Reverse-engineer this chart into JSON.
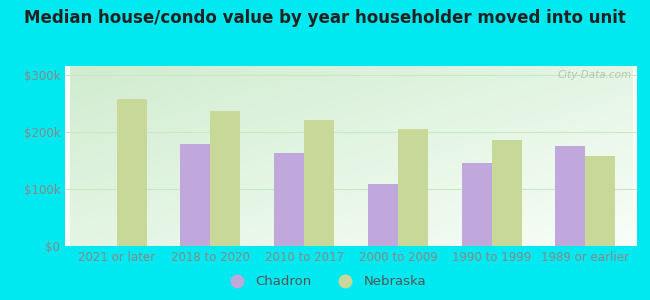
{
  "title": "Median house/condo value by year householder moved into unit",
  "categories": [
    "2021 or later",
    "2018 to 2020",
    "2010 to 2017",
    "2000 to 2009",
    "1990 to 1999",
    "1989 or earlier"
  ],
  "chadron": [
    null,
    178000,
    163000,
    109000,
    146000,
    175000
  ],
  "nebraska": [
    258000,
    236000,
    220000,
    205000,
    185000,
    158000
  ],
  "chadron_color": "#c0a8dc",
  "nebraska_color": "#c8d898",
  "background_outer": "#00e8f0",
  "grid_color": "#c8e8c0",
  "yticks": [
    0,
    100000,
    200000,
    300000
  ],
  "ylim": [
    0,
    315000
  ],
  "bar_width": 0.32,
  "legend_chadron": "Chadron",
  "legend_nebraska": "Nebraska",
  "watermark": "City-Data.com",
  "title_fontsize": 12,
  "axis_fontsize": 8.5,
  "legend_fontsize": 9.5,
  "ytick_labels": [
    "$0",
    "$100k",
    "$200k",
    "$300k"
  ]
}
